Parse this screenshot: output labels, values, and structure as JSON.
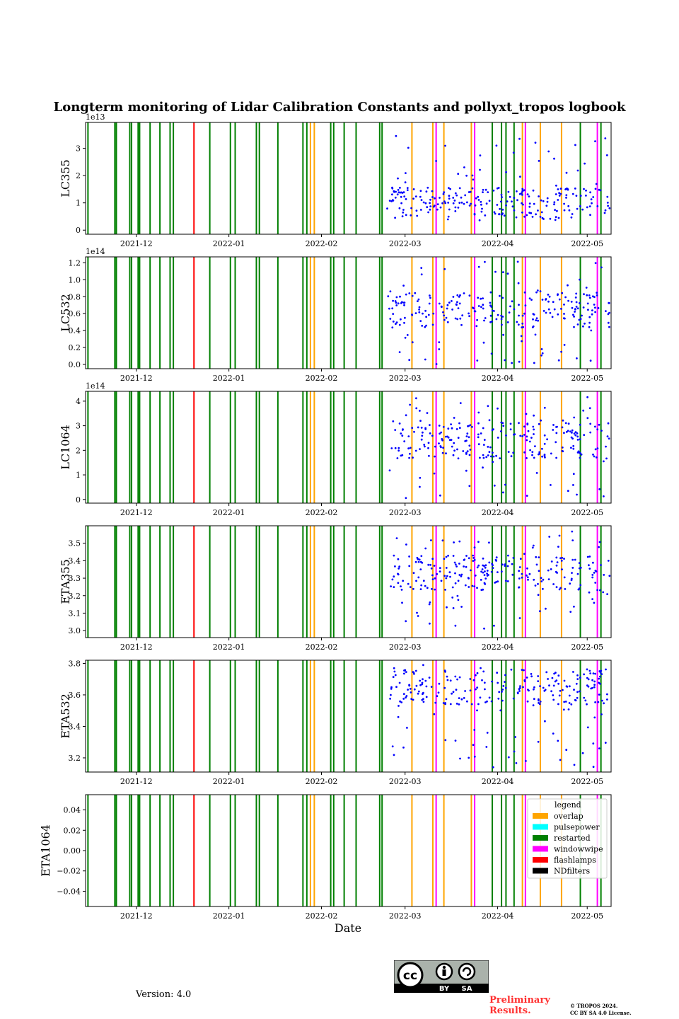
{
  "title": "Longterm monitoring of Lidar Calibration Constants and pollyxt_tropos logbook",
  "xlabel": "Date",
  "version": "Version: 4.0",
  "preliminary": "Preliminary Results.",
  "copyright_line1": "© TROPOS 2024.",
  "copyright_line2": "CC BY SA 4.0 License.",
  "cc_labels": {
    "cc": "cc",
    "by": "BY",
    "sa": "SA"
  },
  "colors": {
    "overlap": "#ffa500",
    "pulsepower": "#00ffff",
    "restarted": "#008000",
    "windowwipe": "#ff00ff",
    "flashlamps": "#ff0000",
    "NDfilters": "#000000",
    "points": "#0000ff"
  },
  "legend": {
    "title": "legend",
    "entries": [
      {
        "label": "overlap",
        "color": "#ffa500"
      },
      {
        "label": "pulsepower",
        "color": "#00ffff"
      },
      {
        "label": "restarted",
        "color": "#008000"
      },
      {
        "label": "windowwipe",
        "color": "#ff00ff"
      },
      {
        "label": "flashlamps",
        "color": "#ff0000"
      },
      {
        "label": "NDfilters",
        "color": "#000000"
      }
    ]
  },
  "chart_data": {
    "type": "scatter",
    "x_axis": {
      "start_day": -17,
      "end_day": 159,
      "ticks": [
        {
          "day": 0,
          "label": "2021-12"
        },
        {
          "day": 31,
          "label": "2022-01"
        },
        {
          "day": 62,
          "label": "2022-02"
        },
        {
          "day": 90,
          "label": "2022-03"
        },
        {
          "day": 121,
          "label": "2022-04"
        },
        {
          "day": 151,
          "label": "2022-05"
        }
      ],
      "day_zero": "2021-12-01"
    },
    "logbook_events": [
      {
        "type": "restarted",
        "days": [
          -16.2,
          -7.2,
          -6.7,
          -2.2,
          -1.6,
          0.6,
          1.1,
          4.6,
          7.9,
          11.3,
          12.4,
          24.6,
          31.5,
          33.1,
          40.2,
          41.2,
          47.4,
          55.8,
          57.1,
          65.1,
          66.1,
          69.6,
          73.6,
          81.5,
          82.3,
          119.2,
          122.3,
          123.8,
          126.5,
          148.7,
          155.6
        ]
      },
      {
        "type": "overlap",
        "days": [
          58.3,
          59.6,
          92.3,
          99.3,
          103.0,
          112.2,
          129.3,
          135.3,
          142.4
        ]
      },
      {
        "type": "windowwipe",
        "days": [
          100.4,
          113.3,
          130.3,
          154.4
        ]
      },
      {
        "type": "flashlamps",
        "days": [
          19.3
        ]
      }
    ],
    "panels": [
      {
        "ylabel": "LC355",
        "exponent": "1e13",
        "ylim": [
          -0.15,
          3.95
        ],
        "ticks": [
          0,
          1,
          2,
          3
        ],
        "tick_labels": [
          "0",
          "1",
          "2",
          "3"
        ],
        "data_start": 84,
        "range": [
          0.3,
          3.5
        ],
        "baseline": 1.0,
        "seed": 11
      },
      {
        "ylabel": "LC532",
        "exponent": "1e14",
        "ylim": [
          -0.05,
          1.27
        ],
        "ticks": [
          0.0,
          0.2,
          0.4,
          0.6,
          0.8,
          1.0,
          1.2
        ],
        "tick_labels": [
          "0.0",
          "0.2",
          "0.4",
          "0.6",
          "0.8",
          "1.0",
          "1.2"
        ],
        "data_start": 84,
        "range": [
          0.0,
          1.22
        ],
        "baseline": 0.65,
        "seed": 23
      },
      {
        "ylabel": "LC1064",
        "exponent": "1e14",
        "ylim": [
          -0.15,
          4.4
        ],
        "ticks": [
          0,
          1,
          2,
          3,
          4
        ],
        "tick_labels": [
          "0",
          "1",
          "2",
          "3",
          "4"
        ],
        "data_start": 84,
        "range": [
          0.0,
          4.2
        ],
        "baseline": 2.4,
        "seed": 37
      },
      {
        "ylabel": "ETA355",
        "exponent": "",
        "ylim": [
          2.96,
          3.6
        ],
        "ticks": [
          3.0,
          3.1,
          3.2,
          3.3,
          3.4,
          3.5
        ],
        "tick_labels": [
          "3.0",
          "3.1",
          "3.2",
          "3.3",
          "3.4",
          "3.5"
        ],
        "data_start": 85,
        "range": [
          3.0,
          3.57
        ],
        "baseline": 3.33,
        "seed": 51
      },
      {
        "ylabel": "ETA532",
        "exponent": "",
        "ylim": [
          3.11,
          3.82
        ],
        "ticks": [
          3.2,
          3.4,
          3.6,
          3.8
        ],
        "tick_labels": [
          "3.2",
          "3.4",
          "3.6",
          "3.8"
        ],
        "data_start": 85,
        "range": [
          3.14,
          3.79
        ],
        "baseline": 3.65,
        "seed": 67
      },
      {
        "ylabel": "ETA1064",
        "exponent": "",
        "ylim": [
          -0.055,
          0.055
        ],
        "ticks": [
          -0.04,
          -0.02,
          0.0,
          0.02,
          0.04
        ],
        "tick_labels": [
          "−0.04",
          "−0.02",
          "0.00",
          "0.02",
          "0.04"
        ],
        "data_start": null,
        "range": null,
        "baseline": null,
        "seed": 0
      }
    ]
  }
}
